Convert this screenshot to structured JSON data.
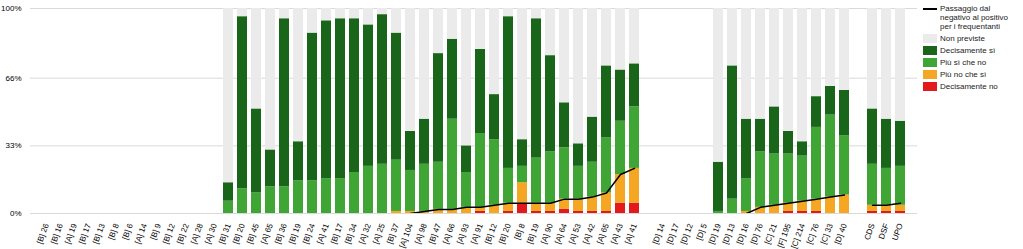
{
  "chart_data": {
    "type": "bar",
    "stacked": true,
    "grid": true,
    "legend": "right",
    "categories": [
      "[B] 26",
      "[B] 16",
      "[A] 19",
      "[B] 17",
      "[B] 13",
      "[B] 8",
      "[B] 6",
      "[A] 14",
      "[B] 9",
      "[B] 12",
      "[B] 22",
      "[A] 28",
      "[A] 30",
      "[B] 31",
      "[B] 20",
      "[B] 45",
      "[A] 65",
      "[B] 36",
      "[B] 19",
      "[B] 24",
      "[A] 41",
      "[B] 17",
      "[B] 34",
      "[A] 32",
      "[A] 25",
      "[B] 37",
      "[A] 104",
      "[A] 98",
      "[B] 47",
      "[A] 66",
      "[A] 93",
      "[A] 91",
      "[B] 12",
      "[B] 20",
      "[B] 8",
      "[B] 19",
      "[A] 90",
      "[A] 64",
      "[A] 53",
      "[A] 42",
      "[A] 65",
      "[A] 43",
      "[A] 41",
      null,
      "[D] 14",
      "[D] 17",
      "[D] 12",
      "[D] 5",
      "[D] 19",
      "[D] 13",
      "[D] 16",
      "[D] 76",
      "[C] 21",
      "[F] 195",
      "[C] 214",
      "[C] 76",
      "[C] 33",
      "[D] 40",
      null,
      "CDS",
      "DSF",
      "UPO"
    ],
    "ylim": [
      0,
      100
    ],
    "yticks": [
      {
        "value": 0,
        "label": "0%"
      },
      {
        "value": 33,
        "label": "33%"
      },
      {
        "value": 66,
        "label": "66%"
      },
      {
        "value": 100,
        "label": "100%"
      }
    ],
    "series": [
      {
        "name": "Decisamente no",
        "type": "bar",
        "color": "#e31a1c",
        "values": [
          0,
          0,
          0,
          0,
          0,
          0,
          0,
          0,
          0,
          0,
          0,
          0,
          0,
          0,
          0,
          0,
          0,
          0,
          0,
          0,
          0,
          0,
          0,
          0,
          0,
          0,
          0,
          0,
          0,
          0,
          0,
          1,
          0,
          1,
          5,
          1,
          1,
          2,
          1,
          1,
          1,
          5,
          5,
          0,
          0,
          0,
          0,
          0,
          0,
          0,
          0,
          0,
          0,
          1,
          1,
          1,
          0,
          0,
          0,
          1,
          1,
          1
        ]
      },
      {
        "name": "Più no che sì",
        "type": "bar",
        "color": "#f5a623",
        "values": [
          0,
          0,
          0,
          0,
          0,
          0,
          0,
          0,
          0,
          0,
          0,
          0,
          0,
          0,
          0,
          0,
          0,
          0,
          0,
          0,
          0,
          0,
          0,
          0,
          0,
          1,
          1,
          1,
          2,
          2,
          3,
          2,
          4,
          4,
          10,
          4,
          4,
          5,
          6,
          7,
          9,
          14,
          17,
          0,
          0,
          0,
          0,
          0,
          0,
          0,
          1,
          3,
          4,
          4,
          5,
          6,
          8,
          9,
          0,
          3,
          3,
          3
        ]
      },
      {
        "name": "Più sì che no",
        "type": "bar",
        "color": "#3fa535",
        "values": [
          0,
          0,
          0,
          0,
          0,
          0,
          0,
          0,
          0,
          0,
          0,
          0,
          0,
          6,
          12,
          10,
          13,
          13,
          16,
          16,
          17,
          17,
          20,
          23,
          24,
          25,
          20,
          23,
          23,
          44,
          17,
          36,
          32,
          17,
          8,
          22,
          25,
          25,
          16,
          17,
          27,
          26,
          30,
          0,
          0,
          0,
          0,
          0,
          1,
          7,
          16,
          27,
          25,
          24,
          22,
          35,
          40,
          29,
          0,
          20,
          18,
          19
        ]
      },
      {
        "name": "Decisamente sì",
        "type": "bar",
        "color": "#19661a",
        "values": [
          0,
          0,
          0,
          0,
          0,
          0,
          0,
          0,
          0,
          0,
          0,
          0,
          0,
          9,
          84,
          41,
          18,
          82,
          19,
          72,
          77,
          78,
          75,
          69,
          73,
          62,
          19,
          22,
          53,
          39,
          13,
          41,
          22,
          74,
          13,
          68,
          47,
          22,
          11,
          22,
          35,
          25,
          21,
          0,
          0,
          0,
          0,
          0,
          24,
          65,
          29,
          16,
          23,
          11,
          7,
          15,
          14,
          22,
          0,
          27,
          24,
          22
        ]
      },
      {
        "name": "Non previste",
        "type": "bar",
        "color": "#ebebeb",
        "values": [
          0,
          0,
          0,
          0,
          0,
          0,
          0,
          0,
          0,
          0,
          0,
          0,
          0,
          85,
          4,
          49,
          69,
          5,
          65,
          12,
          6,
          5,
          5,
          8,
          3,
          12,
          60,
          54,
          22,
          15,
          67,
          20,
          42,
          4,
          64,
          5,
          23,
          46,
          66,
          53,
          28,
          30,
          27,
          0,
          0,
          0,
          0,
          0,
          75,
          28,
          54,
          54,
          48,
          60,
          65,
          43,
          38,
          40,
          0,
          49,
          54,
          55
        ]
      },
      {
        "name": "Passaggio dal negativo al positivo per i frequentanti",
        "type": "line",
        "color": "#000000",
        "values": [
          null,
          null,
          null,
          null,
          null,
          null,
          null,
          null,
          null,
          null,
          null,
          null,
          null,
          null,
          null,
          null,
          null,
          null,
          null,
          null,
          null,
          null,
          null,
          null,
          null,
          null,
          0,
          1,
          2,
          2,
          3,
          3,
          4,
          5,
          5,
          5,
          5,
          7,
          7,
          8,
          10,
          19,
          22,
          null,
          null,
          null,
          null,
          null,
          null,
          null,
          0,
          3,
          4,
          5,
          6,
          7,
          8,
          9,
          null,
          4,
          4,
          5
        ]
      }
    ]
  }
}
